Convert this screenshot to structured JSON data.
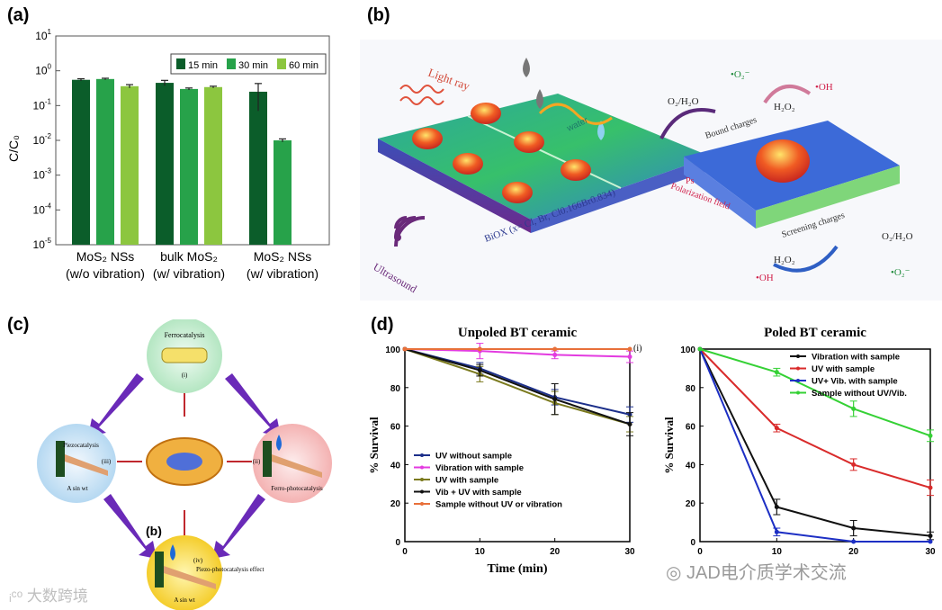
{
  "panels": {
    "a": "(a)",
    "b": "(b)",
    "c": "(c)",
    "d": "(d)"
  },
  "chart_data": [
    {
      "id": "a",
      "type": "bar",
      "scale": "log",
      "ylabel": "C/C₀",
      "ylim": [
        1e-05,
        10
      ],
      "yticks": [
        {
          "exp": "1",
          "value": 10
        },
        {
          "exp": "0",
          "value": 1
        },
        {
          "exp": "-1",
          "value": 0.1
        },
        {
          "exp": "-2",
          "value": 0.01
        },
        {
          "exp": "-3",
          "value": 0.001
        },
        {
          "exp": "-4",
          "value": 0.0001
        },
        {
          "exp": "-5",
          "value": 1e-05
        }
      ],
      "tick_base": "10",
      "categories": [
        {
          "line1": "MoS₂ NSs",
          "line2": "(w/o vibration)"
        },
        {
          "line1": "bulk MoS₂",
          "line2": "(w/ vibration)"
        },
        {
          "line1": "MoS₂ NSs",
          "line2": "(w/ vibration)"
        }
      ],
      "series": [
        {
          "name": "15 min",
          "color": "#0b5d2a",
          "values": [
            0.55,
            0.45,
            0.25
          ],
          "errors": [
            0.04,
            0.08,
            0.18
          ]
        },
        {
          "name": "30 min",
          "color": "#27a24a",
          "values": [
            0.58,
            0.3,
            0.01
          ],
          "errors": [
            0.03,
            0.02,
            0.001
          ]
        },
        {
          "name": "60 min",
          "color": "#8cc63f",
          "values": [
            0.36,
            0.34,
            1e-05
          ],
          "errors": [
            0.04,
            0.02,
            0.0
          ]
        }
      ]
    },
    {
      "id": "d-left",
      "type": "line",
      "title": "Unpoled BT ceramic",
      "xlabel": "Time (min)",
      "ylabel": "% Survival",
      "xlim": [
        0,
        30
      ],
      "ylim": [
        0,
        100
      ],
      "xticks": [
        "0",
        "10",
        "20",
        "30"
      ],
      "yticks": [
        "0",
        "20",
        "40",
        "60",
        "80",
        "100"
      ],
      "annotation": "(i)",
      "series": [
        {
          "name": "UV  without sample",
          "color": "#1c2f8a",
          "x": [
            0,
            10,
            20,
            30
          ],
          "y": [
            100,
            90,
            75,
            66
          ],
          "err": [
            0,
            3,
            4,
            4
          ]
        },
        {
          "name": "Vibration with sample",
          "color": "#e33be0",
          "x": [
            0,
            10,
            20,
            30
          ],
          "y": [
            100,
            99,
            97,
            96
          ],
          "err": [
            0,
            4,
            2,
            3
          ]
        },
        {
          "name": "UV with sample",
          "color": "#7b7a1e",
          "x": [
            0,
            10,
            20,
            30
          ],
          "y": [
            100,
            87,
            72,
            61
          ],
          "err": [
            0,
            4,
            6,
            4
          ]
        },
        {
          "name": "Vib + UV with sample",
          "color": "#111111",
          "x": [
            0,
            10,
            20,
            30
          ],
          "y": [
            100,
            89,
            74,
            61
          ],
          "err": [
            0,
            3,
            8,
            6
          ]
        },
        {
          "name": "Sample without UV or vibration",
          "color": "#e8703a",
          "x": [
            0,
            10,
            20,
            30
          ],
          "y": [
            100,
            100,
            100,
            100
          ],
          "err": [
            0,
            0,
            0,
            0
          ]
        }
      ]
    },
    {
      "id": "d-right",
      "type": "line",
      "title": "Poled BT ceramic",
      "ylabel": "% Survival",
      "xlim": [
        0,
        30
      ],
      "ylim": [
        0,
        100
      ],
      "xticks": [
        "0",
        "10",
        "20",
        "30"
      ],
      "yticks": [
        "0",
        "20",
        "40",
        "60",
        "80",
        "100"
      ],
      "series": [
        {
          "name": "Vibration with sample",
          "color": "#111111",
          "x": [
            0,
            10,
            20,
            30
          ],
          "y": [
            100,
            18,
            7,
            3
          ],
          "err": [
            0,
            4,
            4,
            2
          ]
        },
        {
          "name": "UV with sample",
          "color": "#d92b2b",
          "x": [
            0,
            10,
            20,
            30
          ],
          "y": [
            100,
            59,
            40,
            28
          ],
          "err": [
            0,
            2,
            3,
            4
          ]
        },
        {
          "name": "UV+ Vib. with sample",
          "color": "#1d2fc4",
          "x": [
            0,
            10,
            20,
            30
          ],
          "y": [
            100,
            5,
            0,
            0
          ],
          "err": [
            0,
            2,
            0,
            0
          ]
        },
        {
          "name": "Sample without UV/Vib.",
          "color": "#35d135",
          "x": [
            0,
            10,
            20,
            30
          ],
          "y": [
            100,
            88,
            69,
            55
          ],
          "err": [
            0,
            2,
            4,
            3
          ]
        }
      ]
    }
  ],
  "panel_b": {
    "light": "Light ray",
    "ultrasound": "Ultrasound",
    "box": "BiOX (x= Cl, Br, Cl0.166Br0.834)",
    "water": "water",
    "o2h2o": "O₂/H₂O",
    "o2minus": "•O₂⁻",
    "h2o2": "H₂O₂",
    "oh": "•OH",
    "bound": "Bound charges",
    "polarization": "Polarization field",
    "screening": "Screening charges",
    "ps": "Ps"
  },
  "panel_c": {
    "ferro": "Ferrocatalysis",
    "i": "(i)",
    "piezo": "Piezocatalysis",
    "iii": "(iii)",
    "ferrophoto": "Ferro-photocatalysis",
    "ii": "(ii)",
    "piezophoto": "Piezo-photocatalysis effect",
    "iv": "(iv)",
    "b": "(b)",
    "asin": "A sin wt"
  },
  "watermarks": {
    "left": "大数跨境",
    "right": "JAD电介质学术交流"
  }
}
